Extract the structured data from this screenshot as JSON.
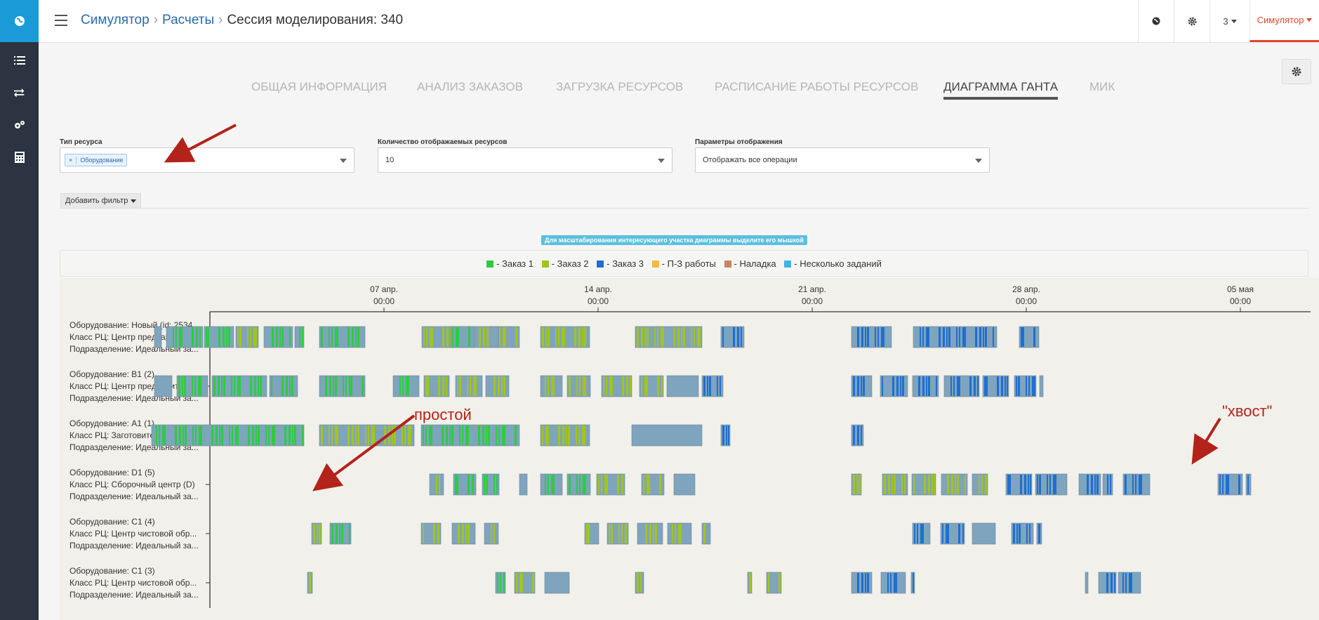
{
  "sidebar": {
    "logo": "globe-logo",
    "items": [
      {
        "icon": "list-icon"
      },
      {
        "icon": "transfer-icon"
      },
      {
        "icon": "gears-icon"
      },
      {
        "icon": "calculator-icon"
      }
    ]
  },
  "header": {
    "breadcrumb": [
      "Симулятор",
      "Расчеты"
    ],
    "current": "Сессия моделирования: 340",
    "count_label": "3",
    "user_label": "Симулятор"
  },
  "tabs": [
    {
      "label": "Общая информация",
      "active": false
    },
    {
      "label": "Анализ заказов",
      "active": false
    },
    {
      "label": "Загрузка ресурсов",
      "active": false
    },
    {
      "label": "Расписание работы ресурсов",
      "active": false
    },
    {
      "label": "Диаграмма Ганта",
      "active": true
    },
    {
      "label": "МИК",
      "active": false
    }
  ],
  "filters": {
    "resource_type": {
      "label": "Тип ресурса",
      "tag": "Оборудование",
      "remove": "×"
    },
    "resource_count": {
      "label": "Количество отображаемых ресурсов",
      "value": "10"
    },
    "display_params": {
      "label": "Параметры отображения",
      "value": "Отображать все операции"
    },
    "add_filter": "Добавить фильтр"
  },
  "hint": "Для масштабирования интересующего участка диаграммы выделите его мышкой",
  "legend": [
    {
      "label": "- Заказ 1",
      "color": "#2ecc40"
    },
    {
      "label": "- Заказ 2",
      "color": "#a4c41c"
    },
    {
      "label": "- Заказ 3",
      "color": "#1e6fd0"
    },
    {
      "label": "- П-З работы",
      "color": "#f6b93b"
    },
    {
      "label": "- Наладка",
      "color": "#c8875a"
    },
    {
      "label": "- Несколько заданий",
      "color": "#3fb7e6"
    }
  ],
  "axis": [
    {
      "date": "07 апр.",
      "time": "00:00"
    },
    {
      "date": "14 апр.",
      "time": "00:00"
    },
    {
      "date": "21 апр.",
      "time": "00:00"
    },
    {
      "date": "28 апр.",
      "time": "00:00"
    },
    {
      "date": "05 мая",
      "time": "00:00"
    }
  ],
  "resources": [
    {
      "lines": [
        "Оборудование: Новый (id: 2534...",
        "Класс РЦ: Центр предваритель...",
        "Подразделение: Идеальный за..."
      ]
    },
    {
      "lines": [
        "Оборудование: B1 (2)",
        "Класс РЦ: Центр предваритель...",
        "Подразделение: Идеальный за..."
      ]
    },
    {
      "lines": [
        "Оборудование: A1 (1)",
        "Класс РЦ: Заготовительный це...",
        "Подразделение: Идеальный за..."
      ]
    },
    {
      "lines": [
        "Оборудование: D1 (5)",
        "Класс РЦ: Сборочный центр (D)",
        "Подразделение: Идеальный за..."
      ]
    },
    {
      "lines": [
        "Оборудование: C1 (4)",
        "Класс РЦ: Центр чистовой обр...",
        "Подразделение: Идеальный за..."
      ]
    },
    {
      "lines": [
        "Оборудование: C1 (3)",
        "Класс РЦ: Центр чистовой обр...",
        "Подразделение: Идеальный за..."
      ]
    }
  ],
  "gantt_colors": {
    "base": "#7fa4bd",
    "order1": "#2ecc40",
    "order2": "#a4c41c",
    "order3": "#1e6fd0"
  },
  "annotations": {
    "idle": "простой",
    "tail": "\"хвост\"",
    "arrow_color": "#b3231a"
  }
}
